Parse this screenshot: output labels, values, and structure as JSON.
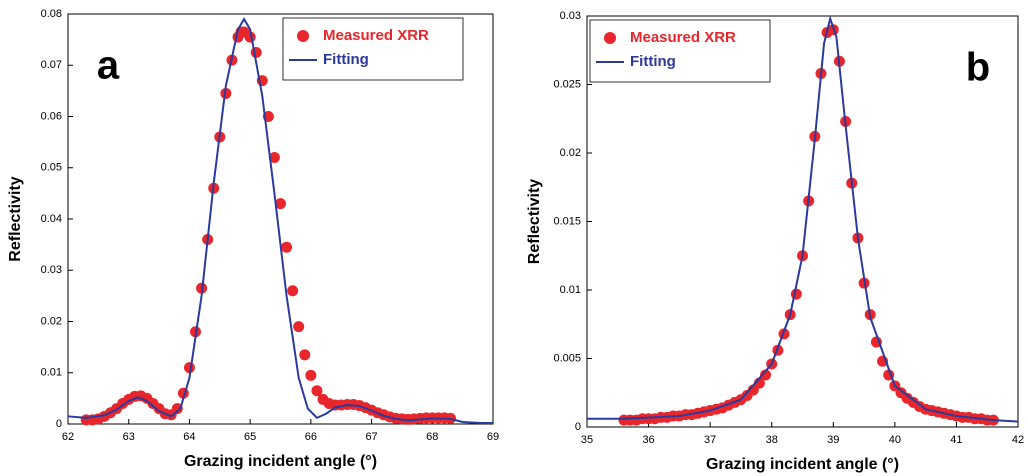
{
  "chart_data": [
    {
      "type": "line",
      "annotation": "a",
      "xlabel": "Grazing incident angle (°)",
      "ylabel": "Reflectivity",
      "xlim": [
        62,
        69
      ],
      "xticks": [
        62,
        63,
        64,
        65,
        66,
        67,
        68,
        69
      ],
      "ylim": [
        0,
        0.08
      ],
      "yticks": [
        0,
        0.01,
        0.02,
        0.03,
        0.04,
        0.05,
        0.06,
        0.07,
        0.08
      ],
      "legend": "upper right",
      "series": [
        {
          "name": "Measured XRR",
          "color": "#e8262b",
          "marker": "circle",
          "x": [
            62.3,
            62.4,
            62.5,
            62.6,
            62.7,
            62.8,
            62.9,
            63.0,
            63.1,
            63.2,
            63.3,
            63.4,
            63.5,
            63.6,
            63.7,
            63.8,
            63.9,
            64.0,
            64.1,
            64.2,
            64.3,
            64.4,
            64.5,
            64.6,
            64.7,
            64.8,
            64.85,
            64.9,
            65.0,
            65.1,
            65.2,
            65.3,
            65.4,
            65.5,
            65.6,
            65.7,
            65.8,
            65.9,
            66.0,
            66.1,
            66.2,
            66.3,
            66.4,
            66.5,
            66.6,
            66.7,
            66.8,
            66.9,
            67.0,
            67.1,
            67.2,
            67.3,
            67.4,
            67.5,
            67.6,
            67.7,
            67.8,
            67.9,
            68.0,
            68.1,
            68.2,
            68.3
          ],
          "values": [
            0.0008,
            0.0008,
            0.001,
            0.0015,
            0.0022,
            0.003,
            0.004,
            0.0048,
            0.0054,
            0.0055,
            0.005,
            0.004,
            0.003,
            0.002,
            0.0018,
            0.003,
            0.006,
            0.011,
            0.018,
            0.0265,
            0.036,
            0.046,
            0.056,
            0.0645,
            0.071,
            0.0755,
            0.0765,
            0.0765,
            0.0755,
            0.0725,
            0.067,
            0.06,
            0.052,
            0.043,
            0.0345,
            0.026,
            0.019,
            0.0135,
            0.0095,
            0.0065,
            0.0048,
            0.004,
            0.0037,
            0.0037,
            0.0038,
            0.0038,
            0.0036,
            0.0032,
            0.0027,
            0.0022,
            0.0018,
            0.0014,
            0.0011,
            0.001,
            0.0009,
            0.001,
            0.0011,
            0.0012,
            0.0012,
            0.0012,
            0.0012,
            0.0011
          ]
        },
        {
          "name": "Fitting",
          "color": "#2b3a9e",
          "x": [
            62.0,
            62.3,
            62.6,
            62.8,
            63.0,
            63.15,
            63.3,
            63.5,
            63.7,
            63.85,
            64.0,
            64.2,
            64.4,
            64.6,
            64.8,
            64.9,
            65.0,
            65.2,
            65.4,
            65.6,
            65.8,
            65.95,
            66.1,
            66.25,
            66.4,
            66.6,
            66.8,
            67.0,
            67.2,
            67.4,
            67.6,
            67.8,
            68.0,
            68.3,
            68.5,
            68.8,
            69.0
          ],
          "values": [
            0.0015,
            0.0012,
            0.0017,
            0.0028,
            0.0045,
            0.0052,
            0.0045,
            0.0025,
            0.0015,
            0.003,
            0.009,
            0.025,
            0.047,
            0.066,
            0.077,
            0.079,
            0.077,
            0.064,
            0.045,
            0.025,
            0.009,
            0.003,
            0.0012,
            0.002,
            0.0032,
            0.0037,
            0.0035,
            0.0026,
            0.0016,
            0.001,
            0.0007,
            0.0009,
            0.0011,
            0.001,
            0.0004,
            0.0002,
            0.0002
          ]
        }
      ]
    },
    {
      "type": "line",
      "annotation": "b",
      "xlabel": "Grazing incident angle (°)",
      "ylabel": "Reflectivity",
      "xlim": [
        35,
        42
      ],
      "xticks": [
        35,
        36,
        37,
        38,
        39,
        40,
        41,
        42
      ],
      "ylim": [
        0,
        0.03
      ],
      "yticks": [
        0,
        0.005,
        0.01,
        0.015,
        0.02,
        0.025,
        0.03
      ],
      "legend": "upper left",
      "series": [
        {
          "name": "Measured XRR",
          "color": "#e8262b",
          "marker": "circle",
          "x": [
            35.6,
            35.7,
            35.8,
            35.9,
            36.0,
            36.1,
            36.2,
            36.3,
            36.4,
            36.5,
            36.6,
            36.7,
            36.8,
            36.9,
            37.0,
            37.1,
            37.2,
            37.3,
            37.4,
            37.5,
            37.6,
            37.7,
            37.8,
            37.9,
            38.0,
            38.1,
            38.2,
            38.3,
            38.4,
            38.5,
            38.6,
            38.7,
            38.8,
            38.9,
            39.0,
            39.1,
            39.2,
            39.3,
            39.4,
            39.5,
            39.6,
            39.7,
            39.8,
            39.9,
            40.0,
            40.1,
            40.2,
            40.3,
            40.4,
            40.5,
            40.6,
            40.7,
            40.8,
            40.9,
            41.0,
            41.1,
            41.2,
            41.3,
            41.4,
            41.5,
            41.6
          ],
          "values": [
            0.0005,
            0.0005,
            0.0005,
            0.0006,
            0.0006,
            0.0006,
            0.0007,
            0.0007,
            0.0008,
            0.0008,
            0.0009,
            0.0009,
            0.001,
            0.0011,
            0.0012,
            0.0013,
            0.0014,
            0.0016,
            0.0018,
            0.002,
            0.0023,
            0.0027,
            0.0032,
            0.0038,
            0.0046,
            0.0056,
            0.0068,
            0.0082,
            0.0097,
            0.0125,
            0.0165,
            0.0212,
            0.0258,
            0.0288,
            0.029,
            0.0267,
            0.0223,
            0.0178,
            0.0138,
            0.0105,
            0.0082,
            0.0062,
            0.0048,
            0.0038,
            0.003,
            0.0025,
            0.0021,
            0.0018,
            0.0015,
            0.0013,
            0.0012,
            0.0011,
            0.001,
            0.0009,
            0.0008,
            0.0007,
            0.0007,
            0.0006,
            0.0006,
            0.0005,
            0.0005
          ]
        },
        {
          "name": "Fitting",
          "color": "#2b3a9e",
          "x": [
            35.0,
            35.6,
            36.5,
            37.0,
            37.5,
            38.0,
            38.3,
            38.5,
            38.7,
            38.85,
            38.95,
            39.05,
            39.2,
            39.4,
            39.6,
            40.0,
            40.5,
            41.0,
            41.6,
            42.0
          ],
          "values": [
            0.0006,
            0.0006,
            0.0008,
            0.0012,
            0.002,
            0.0046,
            0.0082,
            0.0125,
            0.021,
            0.028,
            0.0298,
            0.0285,
            0.022,
            0.0138,
            0.008,
            0.003,
            0.0013,
            0.0008,
            0.0005,
            0.0004
          ]
        }
      ]
    }
  ]
}
